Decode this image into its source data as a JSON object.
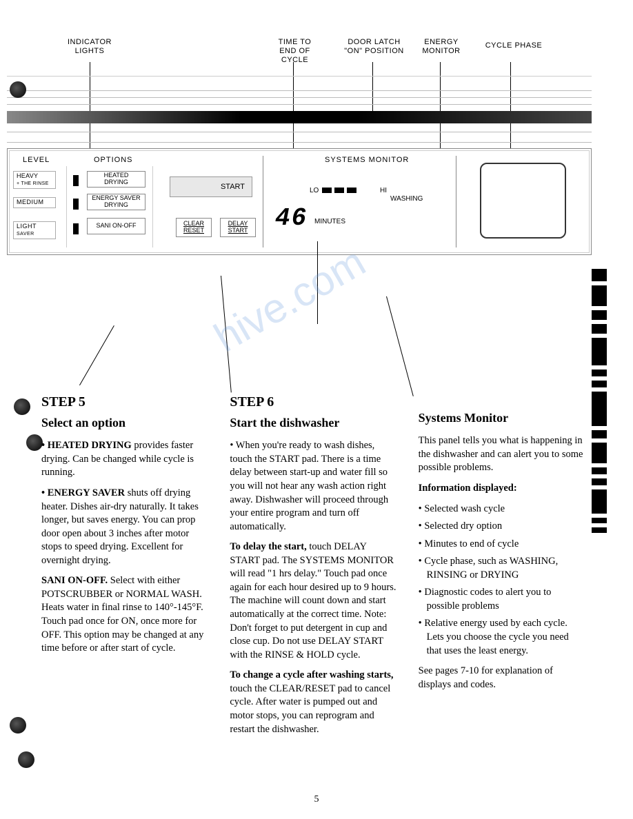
{
  "callouts": {
    "indicator_lights": "INDICATOR\nLIGHTS",
    "time_to_end": "TIME TO\nEND OF CYCLE",
    "door_latch": "DOOR LATCH\n\"ON\" POSITION",
    "energy_monitor": "ENERGY\nMONITOR",
    "cycle_phase": "CYCLE PHASE"
  },
  "panel": {
    "level_label": "LEVEL",
    "options_label": "OPTIONS",
    "systems_monitor_label": "SYSTEMS MONITOR",
    "levels": {
      "heavy": "HEAVY",
      "heavy_sub": "+ THE RINSE",
      "medium": "MEDIUM",
      "light": "LIGHT",
      "light_sub": "SAVER"
    },
    "options": {
      "heated_drying": "HEATED\nDRYING",
      "energy_saver": "ENERGY SAVER\nDRYING",
      "sani": "SANI ON-OFF"
    },
    "buttons": {
      "start": "START",
      "clear_reset": "CLEAR\nRESET",
      "delay_start": "DELAY\nSTART"
    },
    "display": {
      "time": "46",
      "minutes": "MINUTES",
      "lo": "LO",
      "hi": "HI",
      "washing": "WASHING"
    }
  },
  "step5": {
    "title": "STEP 5",
    "subtitle": "Select an option",
    "p1_bold": "• HEATED DRYING",
    "p1_text": " provides faster drying. Can be changed while cycle is running.",
    "p2_bold": "• ENERGY SAVER",
    "p2_text": " shuts off drying heater. Dishes air-dry naturally. It takes longer, but saves energy. You can prop door open about 3 inches after motor stops to speed drying. Excellent for overnight drying.",
    "p3_bold": "SANI ON-OFF.",
    "p3_text": " Select with either POTSCRUBBER or NORMAL WASH. Heats water in final rinse to 140°-145°F. Touch pad once for ON, once more for OFF. This option may be changed at any time before or after start of cycle."
  },
  "step6": {
    "title": "STEP 6",
    "subtitle": "Start the dishwasher",
    "p1": "• When you're ready to wash dishes, touch the START pad. There is a time delay between start-up and water fill so you will not hear any wash action right away. Dishwasher will proceed through your entire program and turn off automatically.",
    "p2_bold": "To delay the start,",
    "p2_text": " touch DELAY START pad. The SYSTEMS MONITOR will read \"1 hrs delay.\" Touch pad once again for each hour desired up to 9 hours. The machine will count down and start automatically at the correct time. Note: Don't forget to put detergent in cup and close cup. Do not use DELAY START with the RINSE & HOLD cycle.",
    "p3_bold": "To change a cycle after washing starts,",
    "p3_text": " touch the CLEAR/RESET pad to cancel cycle. After water is pumped out and motor stops, you can reprogram and restart the dishwasher."
  },
  "systems_monitor": {
    "title": "Systems Monitor",
    "intro": "This panel tells you what is happening in the dishwasher and can alert you to some possible problems.",
    "info_header": "Information displayed:",
    "items": [
      "Selected wash cycle",
      "Selected dry option",
      "Minutes to end of cycle",
      "Cycle phase, such as WASHING, RINSING or DRYING",
      "Diagnostic codes to alert you to possible problems",
      "Relative energy used by each cycle. Lets you choose the cycle you need that uses the least energy."
    ],
    "footer": "See pages 7-10 for explanation of displays and codes."
  },
  "watermark_text": "hive.com",
  "page_number": "5"
}
